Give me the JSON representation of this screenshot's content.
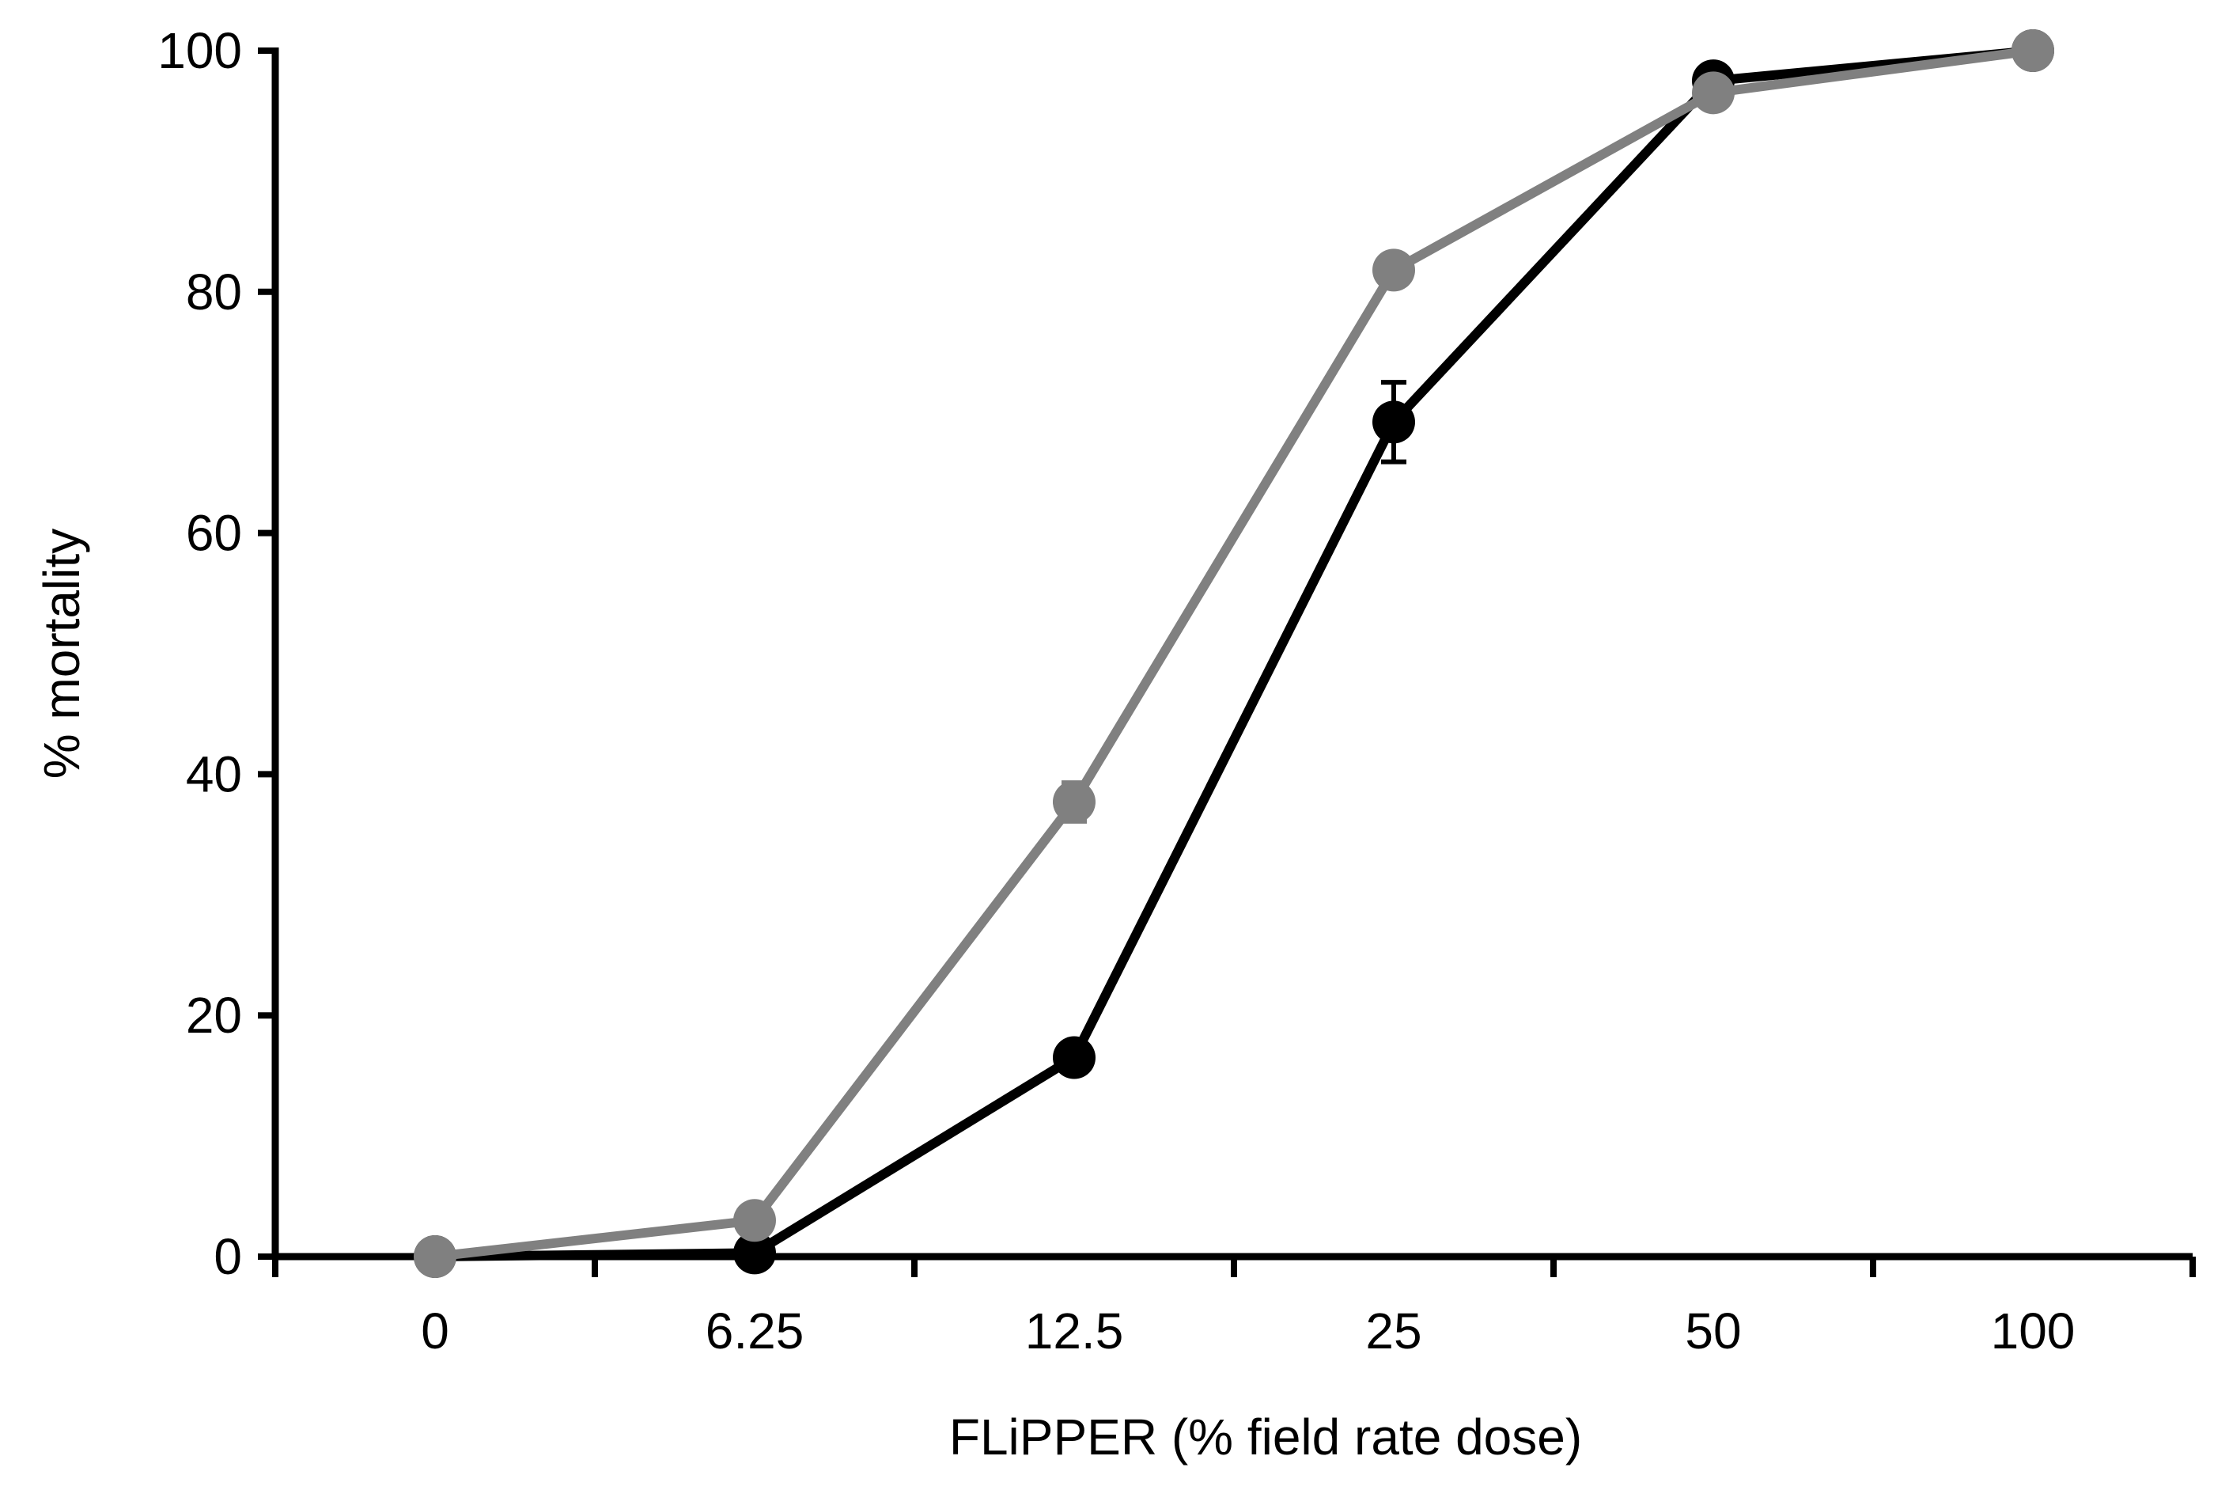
{
  "chart_data": {
    "type": "line",
    "title": "",
    "xlabel": "FLiPPER (% field rate dose)",
    "ylabel": "% mortality",
    "categories": [
      "0",
      "6.25",
      "12.5",
      "25",
      "50",
      "100"
    ],
    "ylim": [
      0,
      100
    ],
    "yticks": [
      "0",
      "20",
      "40",
      "60",
      "80",
      "100"
    ],
    "grid": false,
    "series": [
      {
        "color": "#000000",
        "values": [
          0,
          0.3,
          16.5,
          69.2,
          97.5,
          100
        ],
        "errors": [
          0,
          0,
          0,
          3.3,
          0,
          0
        ]
      },
      {
        "color": "#808080",
        "values": [
          0,
          3.0,
          37.7,
          81.8,
          96.5,
          100
        ],
        "errors": [
          0,
          0,
          1.6,
          1.2,
          0,
          0
        ]
      }
    ]
  }
}
